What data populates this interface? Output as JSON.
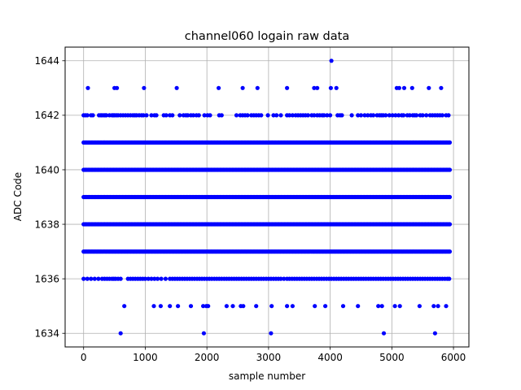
{
  "chart_data": {
    "type": "scatter",
    "title": "channel060 logain raw data",
    "xlabel": "sample number",
    "ylabel": "ADC Code",
    "xlim": [
      -300,
      6250
    ],
    "ylim": [
      1633.5,
      1644.5
    ],
    "xticks": [
      0,
      1000,
      2000,
      3000,
      4000,
      5000,
      6000
    ],
    "yticks": [
      1634,
      1636,
      1638,
      1640,
      1642,
      1644
    ],
    "grid": true,
    "marker_color": "#0000ff",
    "sample_count": 5940,
    "series": [
      {
        "dense_levels": [
          1637,
          1638,
          1639,
          1640,
          1641
        ],
        "level_1636_x": [
          0,
          60,
          120,
          180,
          240,
          300,
          340,
          380,
          420,
          460,
          490,
          520,
          560,
          600,
          720,
          760,
          800,
          840,
          880,
          920,
          960,
          1000,
          1050,
          1100,
          1150,
          1200,
          1260,
          1330,
          1400,
          1440,
          1480,
          1520,
          1560,
          1600,
          1640,
          1680,
          1720,
          1760,
          1800,
          1840,
          1880,
          1920,
          1960,
          2000,
          2040,
          2080,
          2120,
          2160,
          2200,
          2240,
          2280,
          2320,
          2360,
          2400,
          2440,
          2480,
          2520,
          2560,
          2600,
          2640,
          2680,
          2720,
          2760,
          2800,
          2840,
          2880,
          2920,
          2960,
          3000,
          3040,
          3080,
          3120,
          3160,
          3200,
          3250,
          3300,
          3340,
          3380,
          3420,
          3460,
          3500,
          3540,
          3580,
          3620,
          3660,
          3700,
          3740,
          3780,
          3820,
          3860,
          3900,
          3940,
          3980,
          4020,
          4060,
          4100,
          4140,
          4180,
          4220,
          4260,
          4300,
          4340,
          4380,
          4420,
          4460,
          4500,
          4540,
          4580,
          4620,
          4660,
          4700,
          4740,
          4780,
          4820,
          4860,
          4900,
          4940,
          4980,
          5020,
          5060,
          5100,
          5140,
          5180,
          5220,
          5260,
          5300,
          5340,
          5380,
          5420,
          5460,
          5500,
          5540,
          5580,
          5620,
          5660,
          5700,
          5740,
          5780,
          5820,
          5860,
          5900,
          5930
        ],
        "level_1642_x": [
          0,
          30,
          60,
          120,
          150,
          250,
          280,
          300,
          330,
          350,
          370,
          420,
          460,
          480,
          500,
          530,
          560,
          600,
          640,
          680,
          720,
          760,
          800,
          830,
          860,
          900,
          940,
          970,
          1020,
          1100,
          1150,
          1180,
          1300,
          1340,
          1400,
          1440,
          1560,
          1620,
          1660,
          1690,
          1740,
          1780,
          1830,
          1870,
          1960,
          2010,
          2050,
          2200,
          2240,
          2480,
          2540,
          2580,
          2620,
          2660,
          2720,
          2760,
          2800,
          2840,
          2880,
          2990,
          3080,
          3130,
          3200,
          3300,
          3340,
          3390,
          3440,
          3480,
          3520,
          3560,
          3600,
          3640,
          3700,
          3740,
          3790,
          3830,
          3870,
          3900,
          3950,
          4000,
          4120,
          4160,
          4190,
          4350,
          4450,
          4500,
          4560,
          4610,
          4660,
          4700,
          4760,
          4800,
          4830,
          4860,
          4900,
          4960,
          5010,
          5060,
          5110,
          5160,
          5190,
          5250,
          5290,
          5340,
          5370,
          5400,
          5460,
          5500,
          5560,
          5620,
          5660,
          5700,
          5740,
          5780,
          5820,
          5880,
          5920
        ],
        "level_1643_x": [
          70,
          500,
          540,
          980,
          1510,
          2190,
          2580,
          2820,
          3300,
          3740,
          3790,
          4010,
          4100,
          5080,
          5120,
          5200,
          5330,
          5600,
          5800
        ],
        "level_1644_x": [
          4020
        ],
        "level_1635_x": [
          660,
          1140,
          1250,
          1400,
          1530,
          1740,
          1940,
          1990,
          2020,
          2320,
          2420,
          2550,
          2590,
          2800,
          3050,
          3300,
          3390,
          3750,
          3920,
          4210,
          4450,
          4780,
          4840,
          5050,
          5130,
          5450,
          5680,
          5750,
          5880
        ],
        "level_1634_x": [
          600,
          1950,
          3040,
          4870,
          5700
        ]
      }
    ]
  }
}
